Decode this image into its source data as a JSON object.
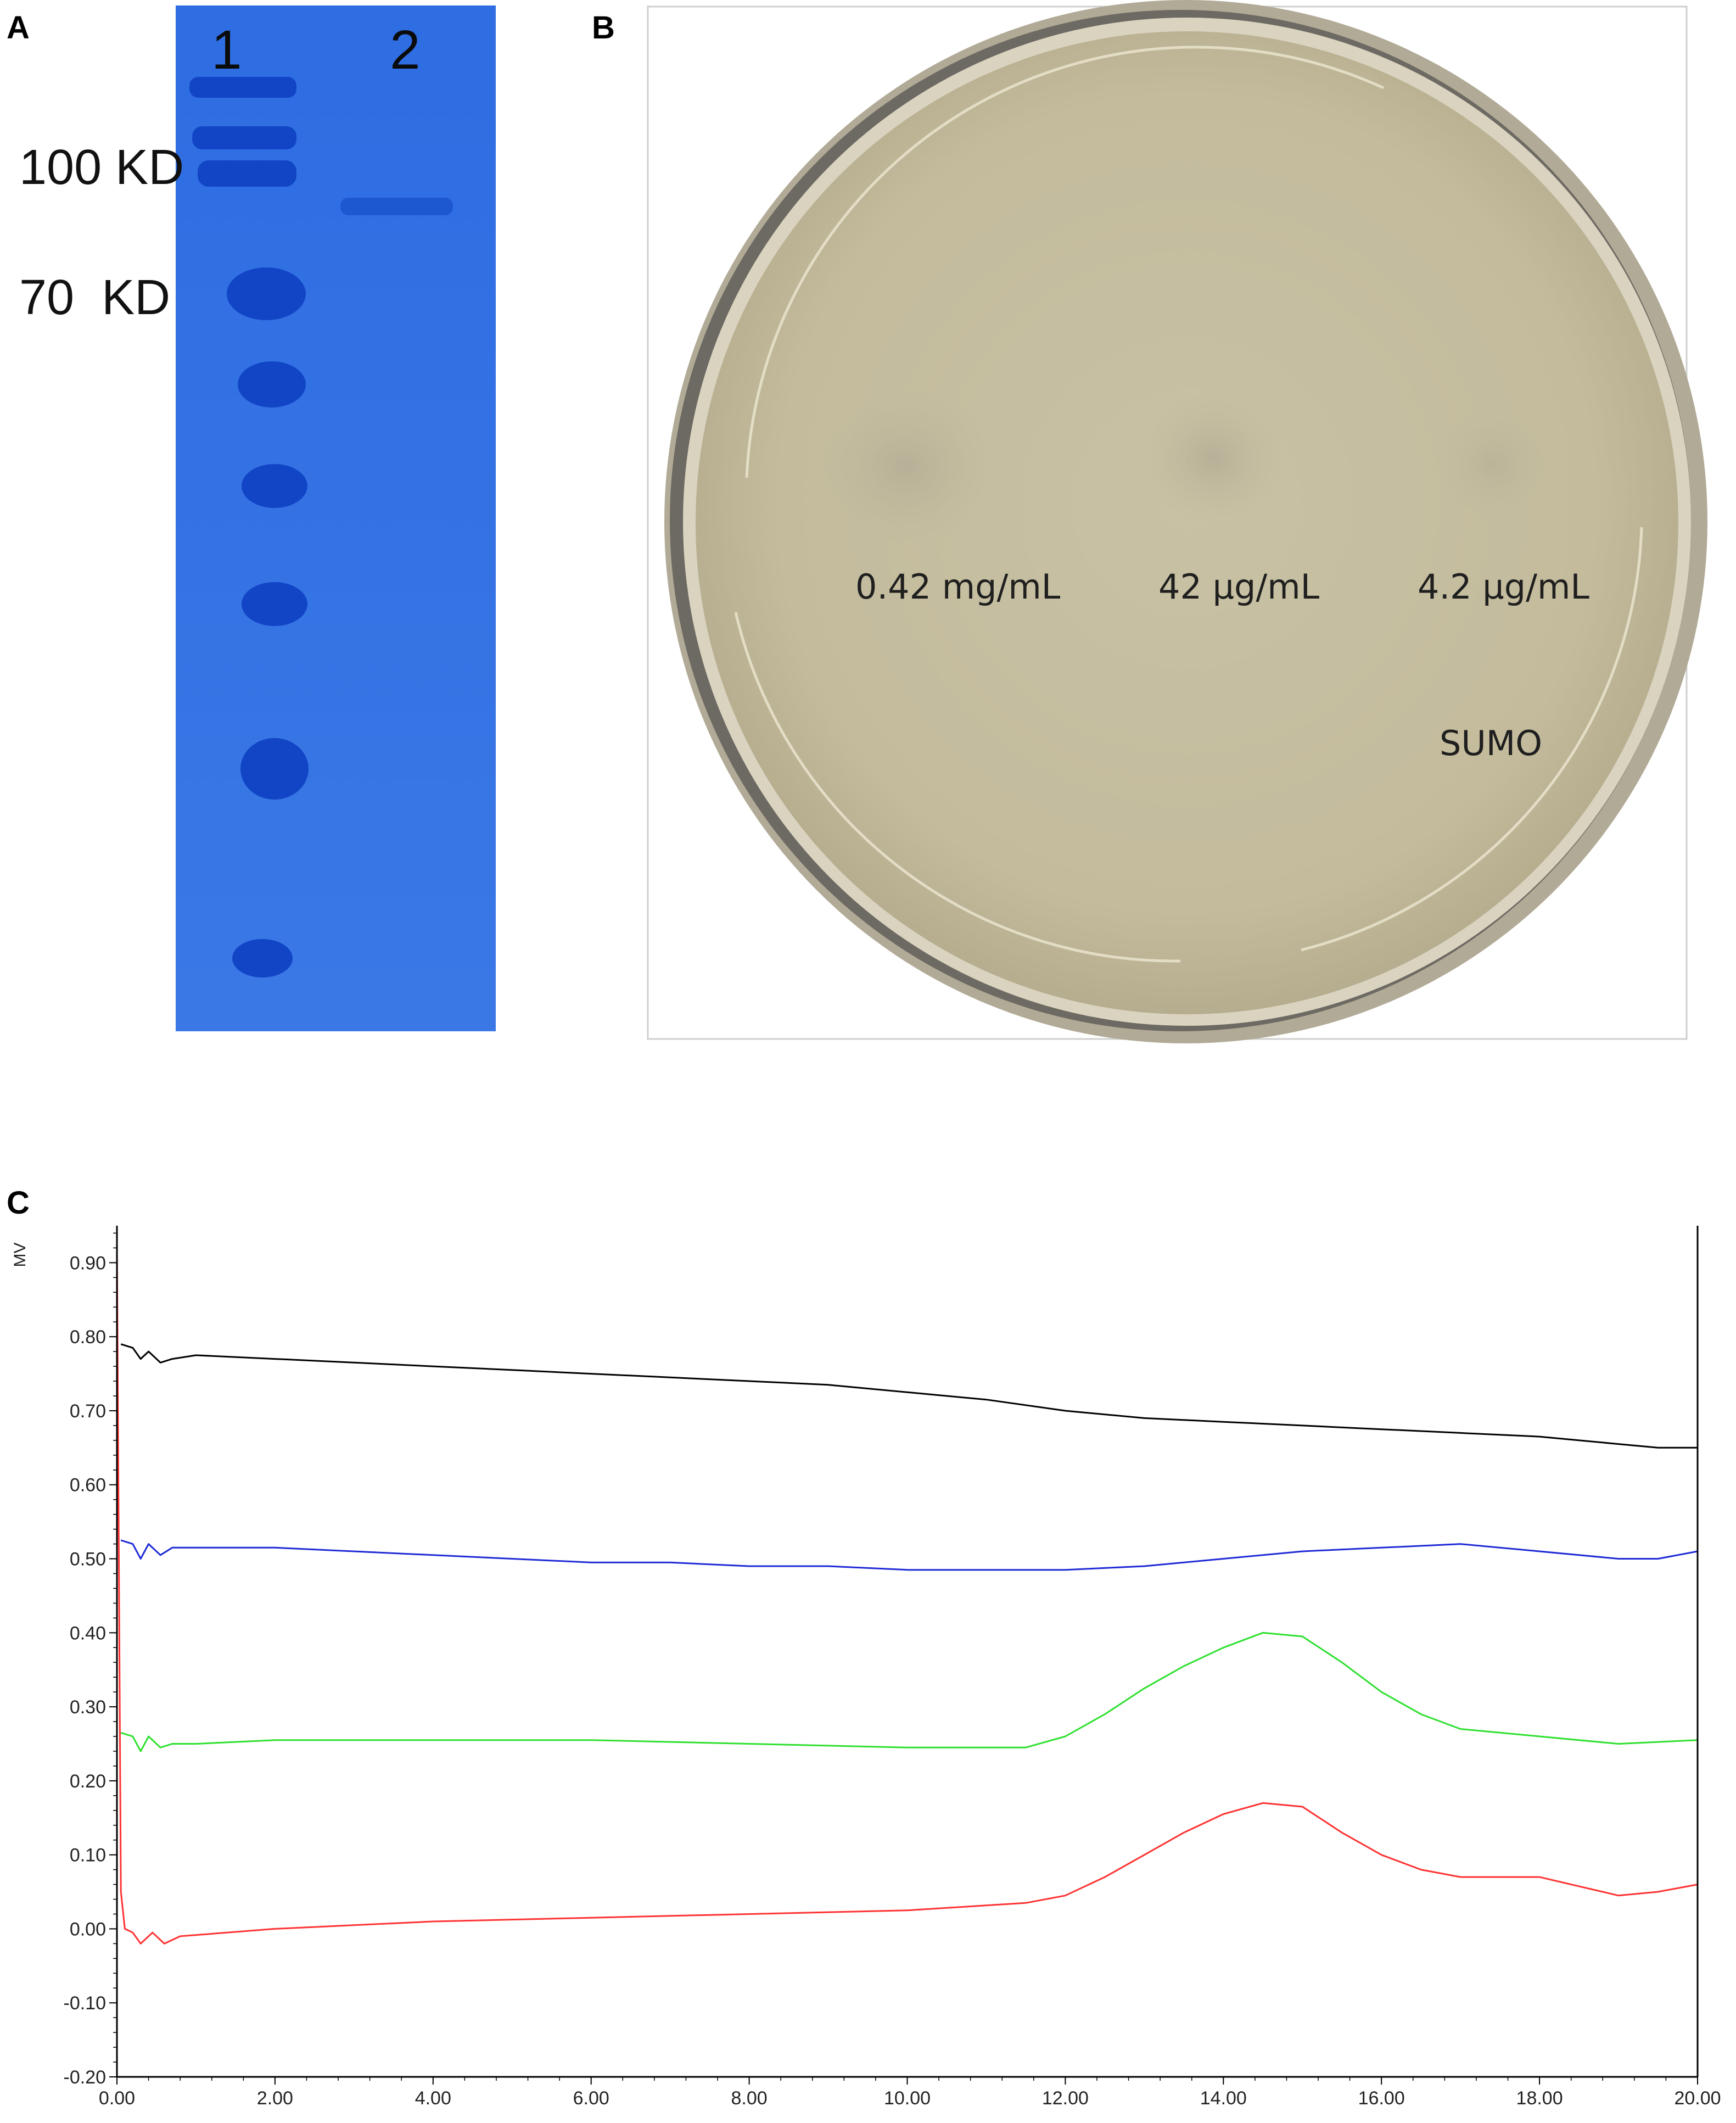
{
  "panels": {
    "a": {
      "letter": "A"
    },
    "b": {
      "letter": "B"
    },
    "c": {
      "letter": "C"
    }
  },
  "gel": {
    "lane_labels": [
      "1",
      "2"
    ],
    "marker_labels": [
      "100 KD",
      "70  KD"
    ],
    "colors": {
      "gel": "#2f6ee0",
      "band": "#1148c8"
    }
  },
  "plate": {
    "spot_labels": [
      "0.42 mg/mL",
      "42 µg/mL",
      "4.2 µg/mL"
    ],
    "control_label": "SUMO",
    "colors": {
      "agar": "#c9c2a6",
      "rim": "#8c877a"
    }
  },
  "chart_data": {
    "type": "line",
    "title": "",
    "xlabel": "",
    "ylabel": "MV",
    "xlim": [
      0,
      20
    ],
    "ylim": [
      -0.2,
      0.95
    ],
    "x_ticks": [
      "0.00",
      "2.00",
      "4.00",
      "6.00",
      "8.00",
      "10.00",
      "12.00",
      "14.00",
      "16.00",
      "18.00",
      "20.00"
    ],
    "y_ticks": [
      "-0.20",
      "-0.10",
      "0.00",
      "0.10",
      "0.20",
      "0.30",
      "0.40",
      "0.50",
      "0.60",
      "0.70",
      "0.80",
      "0.90"
    ],
    "grid": false,
    "legend": "none",
    "series": [
      {
        "color": "#000000",
        "points": [
          [
            0.05,
            0.79
          ],
          [
            0.2,
            0.785
          ],
          [
            0.3,
            0.77
          ],
          [
            0.4,
            0.78
          ],
          [
            0.55,
            0.765
          ],
          [
            0.7,
            0.77
          ],
          [
            1,
            0.775
          ],
          [
            2,
            0.77
          ],
          [
            3,
            0.765
          ],
          [
            4,
            0.76
          ],
          [
            5,
            0.755
          ],
          [
            6,
            0.75
          ],
          [
            7,
            0.745
          ],
          [
            8,
            0.74
          ],
          [
            9,
            0.735
          ],
          [
            10,
            0.725
          ],
          [
            11,
            0.715
          ],
          [
            12,
            0.7
          ],
          [
            13,
            0.69
          ],
          [
            14,
            0.685
          ],
          [
            15,
            0.68
          ],
          [
            16,
            0.675
          ],
          [
            17,
            0.67
          ],
          [
            18,
            0.665
          ],
          [
            19,
            0.655
          ],
          [
            19.5,
            0.65
          ],
          [
            20,
            0.65
          ]
        ]
      },
      {
        "color": "#1f2bd6",
        "points": [
          [
            0.05,
            0.525
          ],
          [
            0.2,
            0.52
          ],
          [
            0.3,
            0.5
          ],
          [
            0.4,
            0.52
          ],
          [
            0.55,
            0.505
          ],
          [
            0.7,
            0.515
          ],
          [
            1,
            0.515
          ],
          [
            2,
            0.515
          ],
          [
            3,
            0.51
          ],
          [
            4,
            0.505
          ],
          [
            5,
            0.5
          ],
          [
            6,
            0.495
          ],
          [
            7,
            0.495
          ],
          [
            8,
            0.49
          ],
          [
            9,
            0.49
          ],
          [
            10,
            0.485
          ],
          [
            11,
            0.485
          ],
          [
            12,
            0.485
          ],
          [
            13,
            0.49
          ],
          [
            14,
            0.5
          ],
          [
            15,
            0.51
          ],
          [
            16,
            0.515
          ],
          [
            17,
            0.52
          ],
          [
            18,
            0.51
          ],
          [
            19,
            0.5
          ],
          [
            19.5,
            0.5
          ],
          [
            20,
            0.51
          ]
        ]
      },
      {
        "color": "#2fe02f",
        "points": [
          [
            0.05,
            0.265
          ],
          [
            0.2,
            0.26
          ],
          [
            0.3,
            0.24
          ],
          [
            0.4,
            0.26
          ],
          [
            0.55,
            0.245
          ],
          [
            0.7,
            0.25
          ],
          [
            1,
            0.25
          ],
          [
            2,
            0.255
          ],
          [
            4,
            0.255
          ],
          [
            6,
            0.255
          ],
          [
            8,
            0.25
          ],
          [
            10,
            0.245
          ],
          [
            11.5,
            0.245
          ],
          [
            12,
            0.26
          ],
          [
            12.5,
            0.29
          ],
          [
            13,
            0.325
          ],
          [
            13.5,
            0.355
          ],
          [
            14,
            0.38
          ],
          [
            14.5,
            0.4
          ],
          [
            15,
            0.395
          ],
          [
            15.5,
            0.36
          ],
          [
            16,
            0.32
          ],
          [
            16.5,
            0.29
          ],
          [
            17,
            0.27
          ],
          [
            18,
            0.26
          ],
          [
            19,
            0.25
          ],
          [
            20,
            0.255
          ]
        ]
      },
      {
        "color": "#ff3333",
        "points": [
          [
            0,
            0.92
          ],
          [
            0.05,
            0.05
          ],
          [
            0.1,
            0.0
          ],
          [
            0.2,
            -0.005
          ],
          [
            0.3,
            -0.02
          ],
          [
            0.45,
            -0.005
          ],
          [
            0.6,
            -0.02
          ],
          [
            0.8,
            -0.01
          ],
          [
            2,
            0.0
          ],
          [
            4,
            0.01
          ],
          [
            6,
            0.015
          ],
          [
            8,
            0.02
          ],
          [
            10,
            0.025
          ],
          [
            11.5,
            0.035
          ],
          [
            12,
            0.045
          ],
          [
            12.5,
            0.07
          ],
          [
            13,
            0.1
          ],
          [
            13.5,
            0.13
          ],
          [
            14,
            0.155
          ],
          [
            14.5,
            0.17
          ],
          [
            15,
            0.165
          ],
          [
            15.5,
            0.13
          ],
          [
            16,
            0.1
          ],
          [
            16.5,
            0.08
          ],
          [
            17,
            0.07
          ],
          [
            18,
            0.07
          ],
          [
            19,
            0.045
          ],
          [
            19.5,
            0.05
          ],
          [
            20,
            0.06
          ]
        ]
      }
    ]
  }
}
